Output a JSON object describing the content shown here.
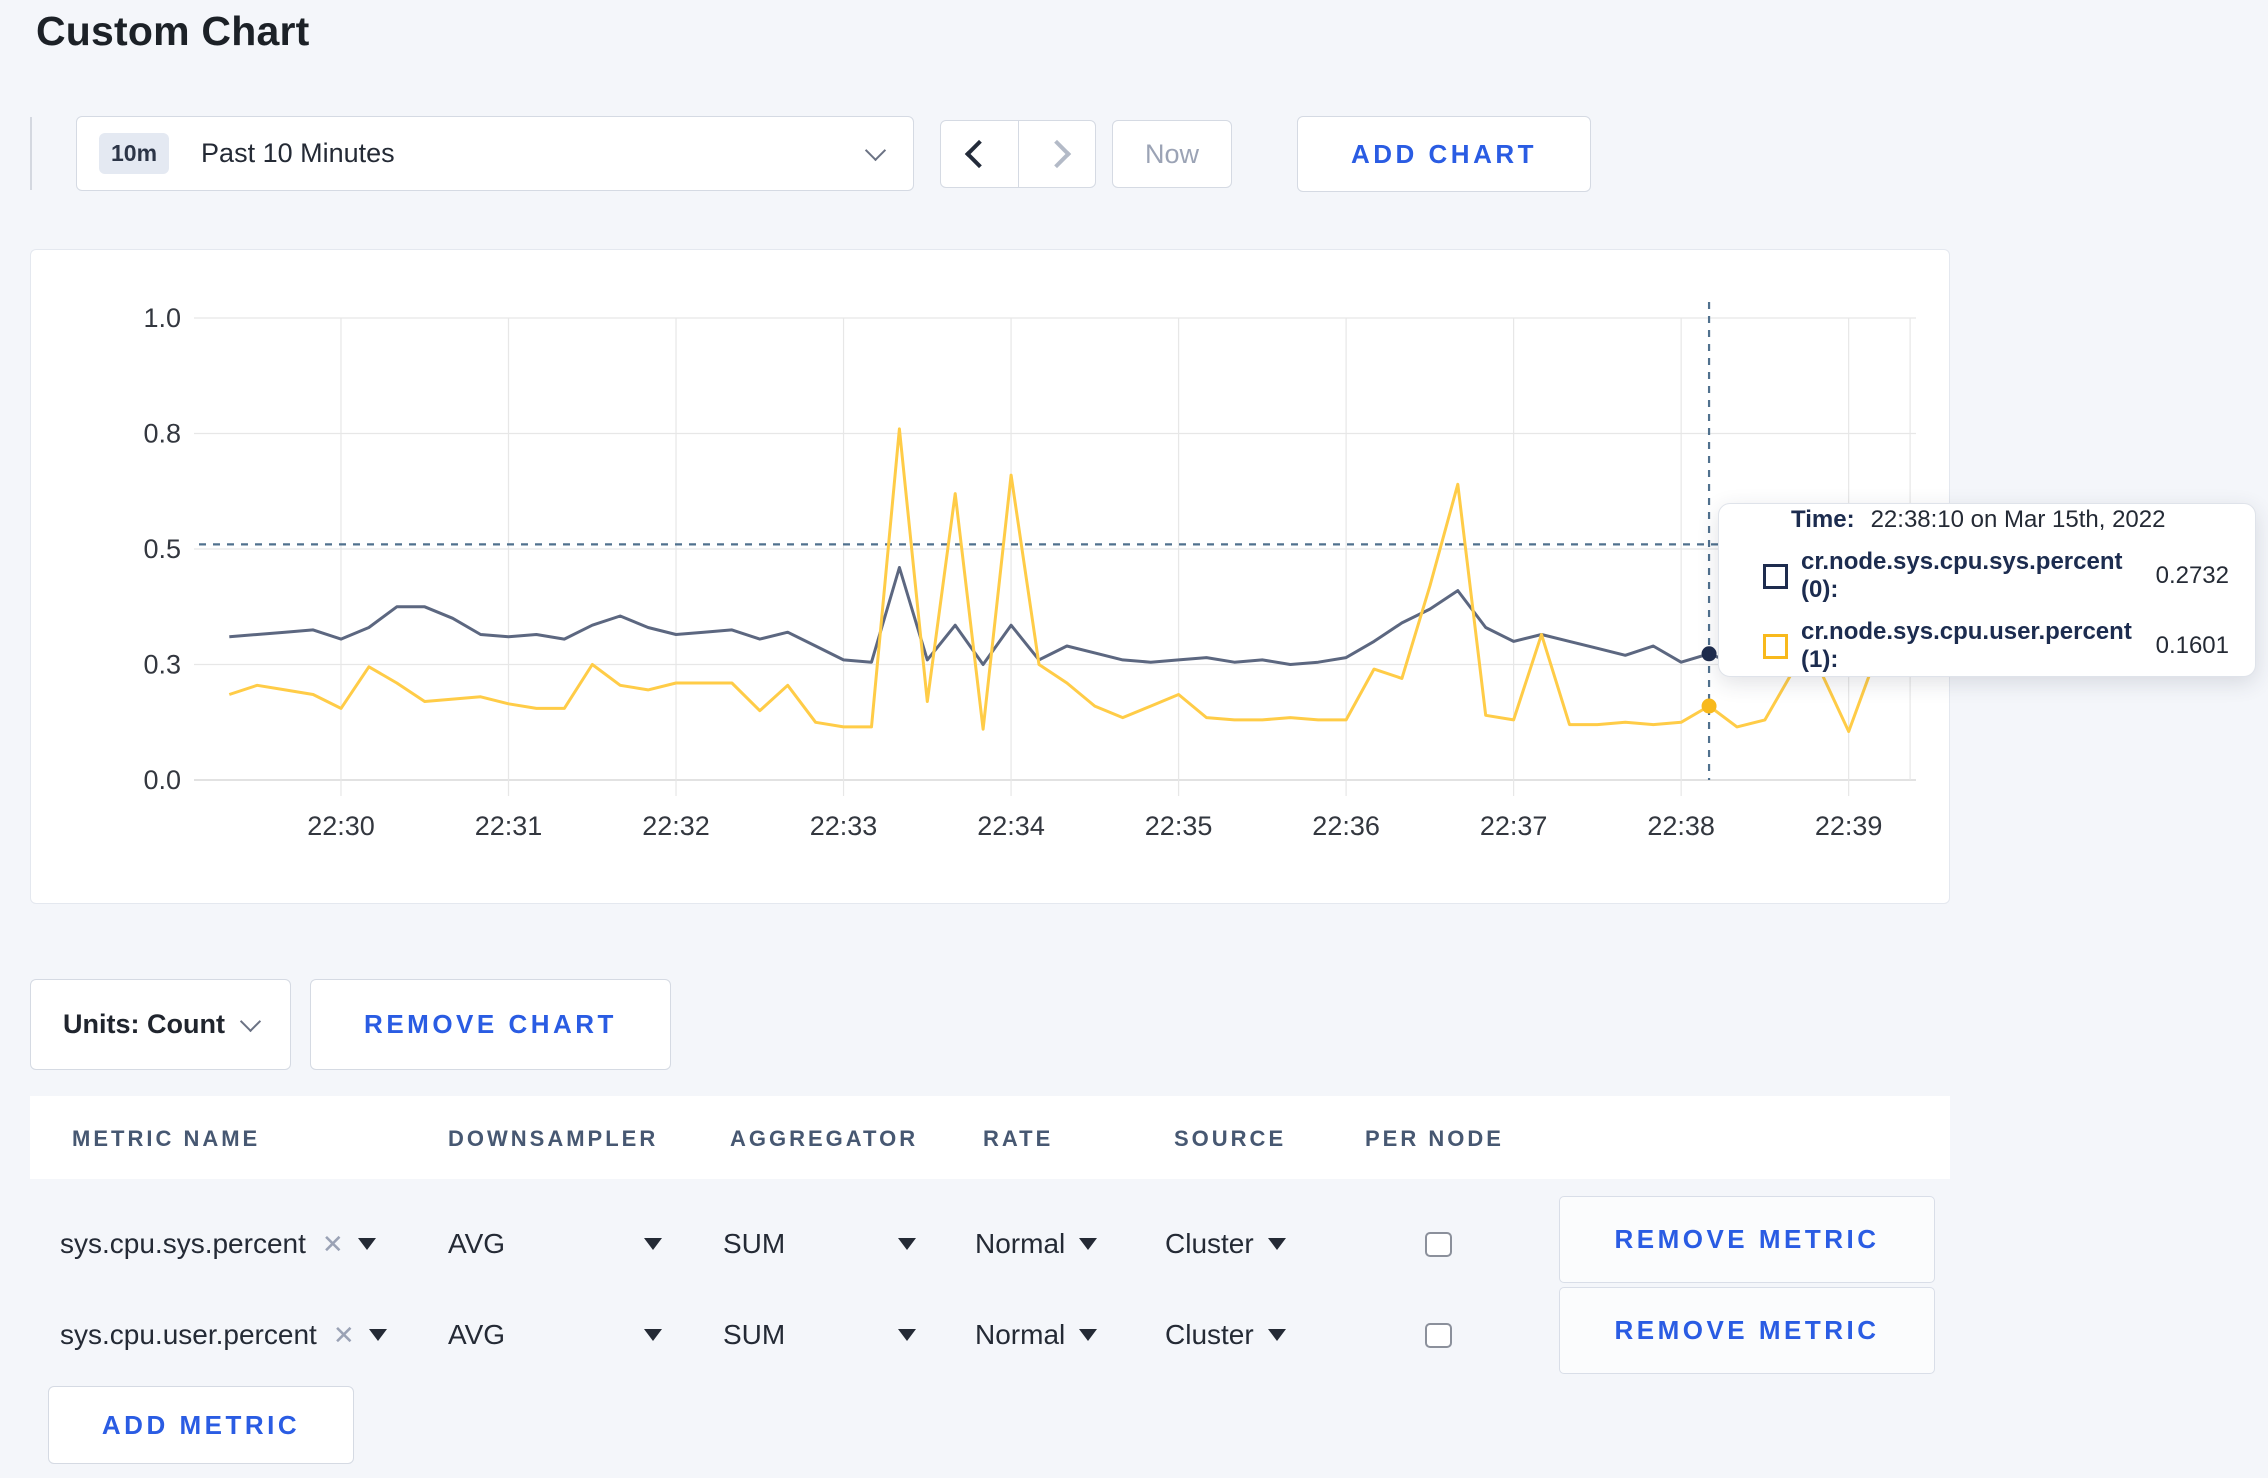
{
  "page": {
    "title": "Custom Chart"
  },
  "toolbar": {
    "time_range": {
      "badge": "10m",
      "label": "Past 10 Minutes"
    },
    "now_label": "Now",
    "add_chart_label": "ADD CHART"
  },
  "icons": {
    "chevron_down": "css-chevron-down",
    "chevron_left": "css-chevron-left",
    "chevron_right": "css-chevron-right",
    "close_x": "✕",
    "caret_down": "css-triangle-down"
  },
  "colors": {
    "accent_blue": "#2a5ce3",
    "series_sys_line": "#5c6780",
    "series_sys_swatch": "#1e2c4e",
    "series_user_line": "#ffcc47",
    "series_user_swatch": "#f8b91c",
    "grid": "#e7e7e7",
    "crosshair": "#50718e"
  },
  "chart_data": {
    "type": "line",
    "title": "",
    "xlabel": "",
    "ylabel": "",
    "ylim": [
      0,
      1
    ],
    "y_tick_values": [
      0,
      0.25,
      0.5,
      0.75,
      1.0
    ],
    "y_tick_labels": [
      "0.0",
      "0.3",
      "0.5",
      "0.8",
      "1.0"
    ],
    "x_ticks": [
      "22:30",
      "22:31",
      "22:32",
      "22:33",
      "22:34",
      "22:35",
      "22:36",
      "22:37",
      "22:38",
      "22:39"
    ],
    "x_start": "22:29:20",
    "x_step_seconds": 10,
    "grid": true,
    "legend_position": "tooltip",
    "series": [
      {
        "name": "cr.node.sys.cpu.sys.percent",
        "values": [
          0.31,
          0.315,
          0.32,
          0.325,
          0.305,
          0.33,
          0.375,
          0.375,
          0.35,
          0.315,
          0.31,
          0.315,
          0.305,
          0.335,
          0.355,
          0.33,
          0.315,
          0.32,
          0.325,
          0.305,
          0.32,
          0.29,
          0.26,
          0.255,
          0.46,
          0.26,
          0.335,
          0.25,
          0.335,
          0.26,
          0.29,
          0.275,
          0.26,
          0.255,
          0.26,
          0.265,
          0.255,
          0.26,
          0.25,
          0.255,
          0.265,
          0.3,
          0.34,
          0.37,
          0.41,
          0.33,
          0.3,
          0.315,
          0.3,
          0.285,
          0.27,
          0.29,
          0.255,
          0.2732,
          0.25,
          0.26,
          0.265,
          0.27,
          0.265,
          0.27
        ]
      },
      {
        "name": "cr.node.sys.cpu.user.percent",
        "values": [
          0.185,
          0.205,
          0.195,
          0.185,
          0.155,
          0.245,
          0.21,
          0.17,
          0.175,
          0.18,
          0.165,
          0.155,
          0.155,
          0.25,
          0.205,
          0.195,
          0.21,
          0.21,
          0.21,
          0.15,
          0.205,
          0.125,
          0.115,
          0.115,
          0.76,
          0.17,
          0.62,
          0.11,
          0.66,
          0.25,
          0.21,
          0.16,
          0.135,
          0.16,
          0.185,
          0.135,
          0.13,
          0.13,
          0.135,
          0.13,
          0.13,
          0.24,
          0.22,
          0.42,
          0.64,
          0.14,
          0.13,
          0.315,
          0.12,
          0.12,
          0.125,
          0.12,
          0.125,
          0.1601,
          0.115,
          0.13,
          0.235,
          0.235,
          0.105,
          0.27
        ]
      }
    ],
    "crosshair": {
      "time": "22:38:10",
      "point_index": 53,
      "h_line_value": 0.51
    }
  },
  "tooltip": {
    "time_label": "Time:",
    "time_value": "22:38:10 on Mar 15th, 2022",
    "rows": [
      {
        "label": "cr.node.sys.cpu.sys.percent (0):",
        "value": "0.2732"
      },
      {
        "label": "cr.node.sys.cpu.user.percent (1):",
        "value": "0.1601"
      }
    ]
  },
  "units_bar": {
    "units_label": "Units: Count",
    "remove_chart_label": "REMOVE CHART"
  },
  "metrics_table": {
    "headers": [
      "METRIC NAME",
      "DOWNSAMPLER",
      "AGGREGATOR",
      "RATE",
      "SOURCE",
      "PER NODE"
    ],
    "remove_metric_label": "REMOVE METRIC",
    "add_metric_label": "ADD METRIC",
    "close_x": "✕",
    "rows": [
      {
        "metric": "sys.cpu.sys.percent",
        "downsampler": "AVG",
        "aggregator": "SUM",
        "rate": "Normal",
        "source": "Cluster",
        "per_node_checked": false
      },
      {
        "metric": "sys.cpu.user.percent",
        "downsampler": "AVG",
        "aggregator": "SUM",
        "rate": "Normal",
        "source": "Cluster",
        "per_node_checked": false
      }
    ]
  }
}
